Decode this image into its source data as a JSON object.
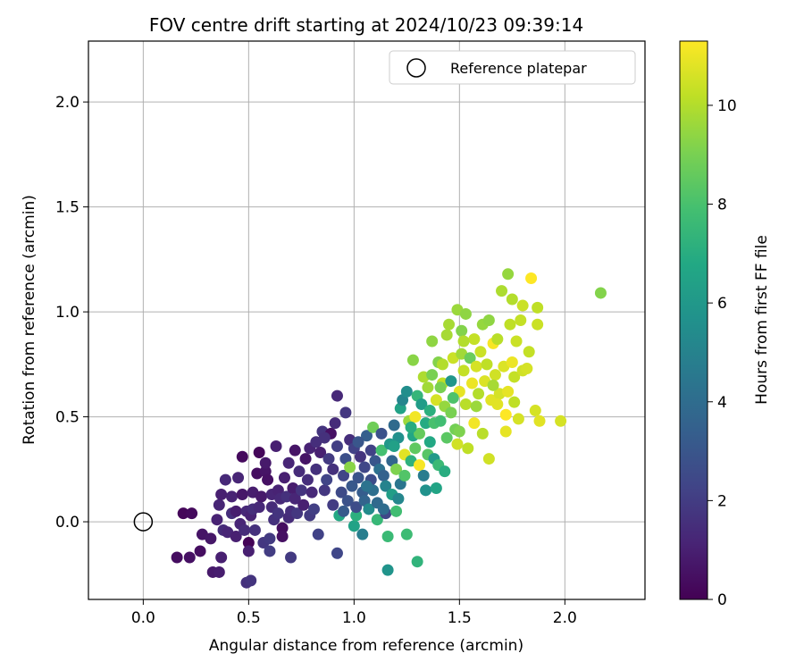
{
  "chart_data": {
    "type": "scatter",
    "title": "FOV centre drift starting at 2024/10/23 09:39:14",
    "xlabel": "Angular distance from reference (arcmin)",
    "ylabel": "Rotation from reference (arcmin)",
    "xlim": [
      -0.26,
      2.38
    ],
    "ylim": [
      -0.37,
      2.29
    ],
    "xticks": [
      0.0,
      0.5,
      1.0,
      1.5,
      2.0
    ],
    "xtick_labels": [
      "0.0",
      "0.5",
      "1.0",
      "1.5",
      "2.0"
    ],
    "yticks": [
      0.0,
      0.5,
      1.0,
      1.5,
      2.0
    ],
    "ytick_labels": [
      "0.0",
      "0.5",
      "1.0",
      "1.5",
      "2.0"
    ],
    "grid": true,
    "legend": {
      "placement": "top-right",
      "entries": [
        "Reference platepar"
      ]
    },
    "colorbar": {
      "label": "Hours from first FF file",
      "min": 0,
      "max": 11.3,
      "ticks": [
        0,
        2,
        4,
        6,
        8,
        10
      ],
      "tick_labels": [
        "0",
        "2",
        "4",
        "6",
        "8",
        "10"
      ],
      "colormap": "viridis"
    },
    "reference_point": {
      "x": 0.0,
      "y": 0.0
    },
    "points": [
      [
        0.19,
        0.04,
        0.2
      ],
      [
        0.23,
        0.04,
        0.3
      ],
      [
        0.16,
        -0.17,
        0.4
      ],
      [
        0.22,
        -0.17,
        0.5
      ],
      [
        0.27,
        -0.14,
        0.4
      ],
      [
        0.28,
        -0.06,
        0.6
      ],
      [
        0.32,
        -0.08,
        0.7
      ],
      [
        0.33,
        -0.24,
        0.8
      ],
      [
        0.36,
        -0.24,
        0.9
      ],
      [
        0.37,
        -0.17,
        1.0
      ],
      [
        0.35,
        0.01,
        1.1
      ],
      [
        0.36,
        0.08,
        1.2
      ],
      [
        0.37,
        0.13,
        1.0
      ],
      [
        0.39,
        0.2,
        1.3
      ],
      [
        0.38,
        -0.04,
        1.4
      ],
      [
        0.4,
        -0.05,
        1.2
      ],
      [
        0.42,
        0.04,
        1.5
      ],
      [
        0.42,
        0.12,
        1.1
      ],
      [
        0.44,
        -0.07,
        1.0
      ],
      [
        0.44,
        0.05,
        0.9
      ],
      [
        0.46,
        -0.01,
        1.2
      ],
      [
        0.47,
        0.13,
        0.7
      ],
      [
        0.47,
        0.31,
        0.3
      ],
      [
        0.48,
        -0.04,
        1.4
      ],
      [
        0.49,
        0.05,
        1.3
      ],
      [
        0.49,
        -0.29,
        1.6
      ],
      [
        0.51,
        -0.28,
        1.7
      ],
      [
        0.5,
        -0.1,
        0.1
      ],
      [
        0.5,
        -0.14,
        1.0
      ],
      [
        0.51,
        0.03,
        1.1
      ],
      [
        0.52,
        0.14,
        0.9
      ],
      [
        0.52,
        0.06,
        1.5
      ],
      [
        0.53,
        -0.04,
        1.6
      ],
      [
        0.54,
        0.23,
        0.4
      ],
      [
        0.55,
        0.33,
        0.2
      ],
      [
        0.55,
        0.07,
        1.3
      ],
      [
        0.56,
        0.12,
        0.8
      ],
      [
        0.57,
        -0.1,
        1.8
      ],
      [
        0.58,
        0.24,
        0.6
      ],
      [
        0.59,
        0.2,
        0.5
      ],
      [
        0.6,
        -0.14,
        2.0
      ],
      [
        0.6,
        -0.08,
        1.9
      ],
      [
        0.61,
        0.07,
        1.4
      ],
      [
        0.61,
        0.13,
        1.2
      ],
      [
        0.62,
        0.01,
        1.6
      ],
      [
        0.64,
        0.15,
        1.1
      ],
      [
        0.64,
        0.04,
        1.7
      ],
      [
        0.65,
        0.11,
        1.3
      ],
      [
        0.66,
        -0.03,
        0.4
      ],
      [
        0.66,
        -0.07,
        0.5
      ],
      [
        0.67,
        0.21,
        1.0
      ],
      [
        0.68,
        0.12,
        1.6
      ],
      [
        0.69,
        0.02,
        1.4
      ],
      [
        0.7,
        -0.17,
        1.9
      ],
      [
        0.7,
        0.05,
        1.5
      ],
      [
        0.71,
        0.16,
        0.9
      ],
      [
        0.72,
        0.34,
        0.6
      ],
      [
        0.72,
        0.11,
        1.2
      ],
      [
        0.73,
        0.04,
        1.8
      ],
      [
        0.74,
        0.24,
        1.4
      ],
      [
        0.75,
        0.15,
        1.7
      ],
      [
        0.76,
        0.08,
        1.0
      ],
      [
        0.77,
        0.3,
        0.6
      ],
      [
        0.78,
        0.2,
        1.5
      ],
      [
        0.79,
        0.35,
        1.1
      ],
      [
        0.79,
        0.03,
        1.9
      ],
      [
        0.8,
        0.14,
        1.3
      ],
      [
        0.81,
        0.06,
        2.1
      ],
      [
        0.82,
        0.25,
        1.6
      ],
      [
        0.82,
        0.38,
        1.5
      ],
      [
        0.83,
        -0.06,
        2.2
      ],
      [
        0.84,
        0.33,
        1.0
      ],
      [
        0.85,
        0.43,
        1.7
      ],
      [
        0.86,
        0.15,
        1.8
      ],
      [
        0.87,
        0.2,
        2.3
      ],
      [
        0.88,
        0.3,
        1.9
      ],
      [
        0.89,
        0.42,
        0.5
      ],
      [
        0.9,
        0.08,
        2.0
      ],
      [
        0.9,
        0.25,
        1.6
      ],
      [
        0.91,
        0.47,
        1.4
      ],
      [
        0.92,
        0.6,
        1.3
      ],
      [
        0.92,
        0.36,
        2.1
      ],
      [
        0.92,
        -0.15,
        2.4
      ],
      [
        0.93,
        0.03,
        6.8
      ],
      [
        0.94,
        0.14,
        2.5
      ],
      [
        0.95,
        0.22,
        2.3
      ],
      [
        0.96,
        0.3,
        2.7
      ],
      [
        0.96,
        0.52,
        1.8
      ],
      [
        0.97,
        0.1,
        2.8
      ],
      [
        0.98,
        0.39,
        1.5
      ],
      [
        0.98,
        0.26,
        9.3
      ],
      [
        0.99,
        0.17,
        3.1
      ],
      [
        1.0,
        0.35,
        2.2
      ],
      [
        1.0,
        -0.02,
        6.5
      ],
      [
        1.01,
        0.03,
        7.1
      ],
      [
        1.01,
        0.07,
        2.6
      ],
      [
        1.02,
        0.21,
        2.9
      ],
      [
        1.03,
        0.31,
        1.7
      ],
      [
        1.04,
        0.14,
        3.3
      ],
      [
        1.04,
        -0.06,
        4.8
      ],
      [
        1.05,
        0.26,
        2.4
      ],
      [
        1.05,
        0.1,
        3.6
      ],
      [
        1.06,
        0.41,
        3.4
      ],
      [
        1.07,
        0.06,
        5.4
      ],
      [
        1.08,
        0.2,
        2.6
      ],
      [
        1.08,
        0.34,
        2.2
      ],
      [
        1.09,
        0.45,
        8.8
      ],
      [
        1.09,
        0.15,
        4.1
      ],
      [
        1.1,
        0.29,
        3.0
      ],
      [
        1.11,
        0.01,
        7.5
      ],
      [
        1.11,
        0.09,
        3.9
      ],
      [
        1.12,
        0.25,
        4.2
      ],
      [
        1.13,
        0.34,
        7.9
      ],
      [
        1.13,
        0.42,
        2.8
      ],
      [
        1.14,
        0.22,
        3.5
      ],
      [
        1.15,
        0.17,
        5.0
      ],
      [
        1.15,
        0.04,
        2.4
      ],
      [
        1.16,
        -0.07,
        7.6
      ],
      [
        1.16,
        -0.23,
        5.8
      ],
      [
        1.17,
        0.37,
        6.0
      ],
      [
        1.18,
        0.29,
        3.7
      ],
      [
        1.18,
        0.13,
        6.3
      ],
      [
        1.19,
        0.46,
        3.9
      ],
      [
        1.2,
        0.25,
        9.1
      ],
      [
        1.2,
        0.05,
        7.8
      ],
      [
        1.21,
        0.4,
        5.6
      ],
      [
        1.22,
        0.18,
        4.4
      ],
      [
        1.22,
        0.54,
        6.5
      ],
      [
        1.23,
        0.58,
        5.1
      ],
      [
        1.24,
        0.32,
        10.8
      ],
      [
        1.24,
        0.22,
        8.2
      ],
      [
        1.25,
        -0.06,
        7.7
      ],
      [
        1.25,
        0.62,
        5.5
      ],
      [
        1.26,
        0.48,
        9.6
      ],
      [
        1.27,
        0.29,
        7.2
      ],
      [
        1.28,
        0.41,
        6.7
      ],
      [
        1.28,
        0.77,
        9.3
      ],
      [
        1.29,
        0.5,
        11.1
      ],
      [
        1.29,
        0.35,
        8.5
      ],
      [
        1.3,
        0.6,
        7.4
      ],
      [
        1.3,
        -0.19,
        7.3
      ],
      [
        1.31,
        0.42,
        8.6
      ],
      [
        1.31,
        0.27,
        11.2
      ],
      [
        1.32,
        0.56,
        6.2
      ],
      [
        1.33,
        0.69,
        9.9
      ],
      [
        1.33,
        0.22,
        4.7
      ],
      [
        1.34,
        0.47,
        6.9
      ],
      [
        1.35,
        0.64,
        9.7
      ],
      [
        1.35,
        0.32,
        8.3
      ],
      [
        1.36,
        0.53,
        7.1
      ],
      [
        1.37,
        0.86,
        9.4
      ],
      [
        1.37,
        0.7,
        9.0
      ],
      [
        1.38,
        0.47,
        8.0
      ],
      [
        1.38,
        0.3,
        6.1
      ],
      [
        1.39,
        0.58,
        10.6
      ],
      [
        1.4,
        0.76,
        9.2
      ],
      [
        1.4,
        0.27,
        7.6
      ],
      [
        1.41,
        0.48,
        7.8
      ],
      [
        1.42,
        0.66,
        10.2
      ],
      [
        1.42,
        0.75,
        10.0
      ],
      [
        1.43,
        0.55,
        9.5
      ],
      [
        1.44,
        0.4,
        8.4
      ],
      [
        1.44,
        0.89,
        9.8
      ],
      [
        1.45,
        0.94,
        9.8
      ],
      [
        1.46,
        0.67,
        5.9
      ],
      [
        1.46,
        0.52,
        9.0
      ],
      [
        1.47,
        0.78,
        10.4
      ],
      [
        1.48,
        0.44,
        8.9
      ],
      [
        1.49,
        1.01,
        9.6
      ],
      [
        1.49,
        0.37,
        10.5
      ],
      [
        1.5,
        0.62,
        10.9
      ],
      [
        1.51,
        0.91,
        9.2
      ],
      [
        1.51,
        0.8,
        9.7
      ],
      [
        1.52,
        0.72,
        10.3
      ],
      [
        1.53,
        0.99,
        9.4
      ],
      [
        1.53,
        0.56,
        10.1
      ],
      [
        1.54,
        0.35,
        10.2
      ],
      [
        1.55,
        0.78,
        8.7
      ],
      [
        1.56,
        0.66,
        11.0
      ],
      [
        1.57,
        0.87,
        10.3
      ],
      [
        1.57,
        0.47,
        11.1
      ],
      [
        1.58,
        0.74,
        10.6
      ],
      [
        1.59,
        0.61,
        10.0
      ],
      [
        1.6,
        0.81,
        10.4
      ],
      [
        1.61,
        0.94,
        9.5
      ],
      [
        1.62,
        0.67,
        10.7
      ],
      [
        1.63,
        0.75,
        10.2
      ],
      [
        1.64,
        0.96,
        9.4
      ],
      [
        1.64,
        0.3,
        10.5
      ],
      [
        1.65,
        0.58,
        10.8
      ],
      [
        1.66,
        0.85,
        11.2
      ],
      [
        1.67,
        0.7,
        10.5
      ],
      [
        1.68,
        0.87,
        10.1
      ],
      [
        1.69,
        0.61,
        10.6
      ],
      [
        1.7,
        1.1,
        9.9
      ],
      [
        1.71,
        0.74,
        10.7
      ],
      [
        1.72,
        0.43,
        10.9
      ],
      [
        1.72,
        0.51,
        11.3
      ],
      [
        1.73,
        1.18,
        9.5
      ],
      [
        1.73,
        0.62,
        10.9
      ],
      [
        1.74,
        0.94,
        10.2
      ],
      [
        1.75,
        1.06,
        10.0
      ],
      [
        1.75,
        0.76,
        11.0
      ],
      [
        1.76,
        0.69,
        10.3
      ],
      [
        1.77,
        0.86,
        10.4
      ],
      [
        1.78,
        0.49,
        10.6
      ],
      [
        1.79,
        0.96,
        10.3
      ],
      [
        1.8,
        1.03,
        10.4
      ],
      [
        1.8,
        0.72,
        10.5
      ],
      [
        1.82,
        0.73,
        10.6
      ],
      [
        1.83,
        0.81,
        10.3
      ],
      [
        1.84,
        1.16,
        11.3
      ],
      [
        1.86,
        0.53,
        10.6
      ],
      [
        1.87,
        1.02,
        10.2
      ],
      [
        1.87,
        0.94,
        10.4
      ],
      [
        1.88,
        0.48,
        10.8
      ],
      [
        1.98,
        0.48,
        10.6
      ],
      [
        2.17,
        1.09,
        9.2
      ],
      [
        0.45,
        0.21,
        1.2
      ],
      [
        0.58,
        0.28,
        0.8
      ],
      [
        0.63,
        0.36,
        1.0
      ],
      [
        0.69,
        0.28,
        1.2
      ],
      [
        0.86,
        0.4,
        1.6
      ],
      [
        0.95,
        0.05,
        3.2
      ],
      [
        1.02,
        0.38,
        3.0
      ],
      [
        1.06,
        0.17,
        4.3
      ],
      [
        1.14,
        0.06,
        4.0
      ],
      [
        1.19,
        0.36,
        6.4
      ],
      [
        1.21,
        0.11,
        5.2
      ],
      [
        1.27,
        0.45,
        7.0
      ],
      [
        1.34,
        0.15,
        5.7
      ],
      [
        1.36,
        0.38,
        6.8
      ],
      [
        1.39,
        0.16,
        6.6
      ],
      [
        1.41,
        0.64,
        9.0
      ],
      [
        1.43,
        0.24,
        7.0
      ],
      [
        1.47,
        0.59,
        8.1
      ],
      [
        1.5,
        0.43,
        9.1
      ],
      [
        1.52,
        0.86,
        10.0
      ],
      [
        1.58,
        0.55,
        9.6
      ],
      [
        1.61,
        0.42,
        10.1
      ],
      [
        1.66,
        0.65,
        9.8
      ],
      [
        1.68,
        0.56,
        10.8
      ],
      [
        1.76,
        0.57,
        10.2
      ]
    ]
  }
}
